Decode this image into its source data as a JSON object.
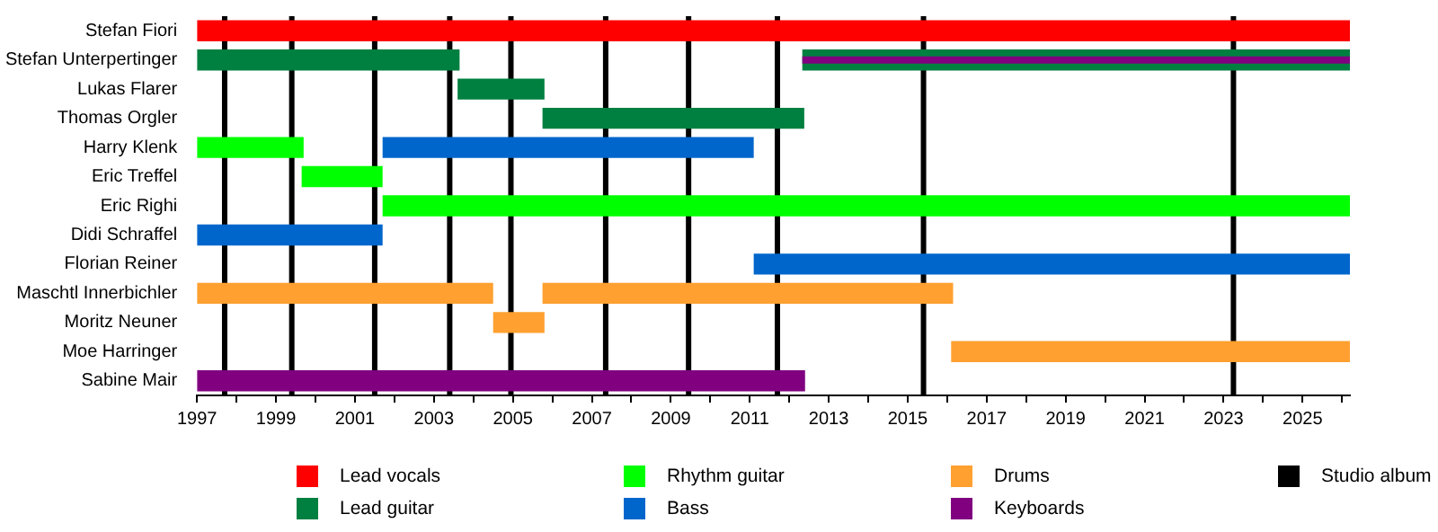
{
  "chart_data": {
    "type": "bar",
    "orientation": "horizontal",
    "categories": [
      "Stefan Fiori",
      "Stefan Unterpertinger",
      "Lukas Flarer",
      "Thomas Orgler",
      "Harry Klenk",
      "Eric Treffel",
      "Eric Righi",
      "Didi Schraffel",
      "Florian Reiner",
      "Maschtl Innerbichler",
      "Moritz Neuner",
      "Moe Harringer",
      "Sabine Mair"
    ],
    "series": [
      {
        "name": "Lead vocals",
        "color": "#ff0000",
        "base": [
          1997,
          null,
          null,
          null,
          null,
          null,
          null,
          null,
          null,
          null,
          null,
          null,
          null
        ],
        "values": [
          29.2,
          null,
          null,
          null,
          null,
          null,
          null,
          null,
          null,
          null,
          null,
          null,
          null
        ]
      },
      {
        "name": "Lead guitar",
        "color": "#008040",
        "base": [
          null,
          1997,
          2003.6,
          2005.75,
          null,
          null,
          null,
          null,
          null,
          null,
          null,
          null,
          null
        ],
        "values": [
          null,
          6.65,
          2.2,
          6.63,
          null,
          null,
          null,
          null,
          null,
          null,
          null,
          null,
          null
        ]
      },
      {
        "color": "#008040",
        "base": [
          null,
          2012.33,
          null,
          null,
          null,
          null,
          null,
          null,
          null,
          null,
          null,
          null,
          null
        ],
        "values": [
          null,
          13.87,
          null,
          null,
          null,
          null,
          null,
          null,
          null,
          null,
          null,
          null,
          null
        ]
      },
      {
        "name": "Rhythm guitar",
        "color": "#00ff00",
        "base": [
          null,
          null,
          null,
          null,
          1997,
          1999.65,
          2001.7,
          null,
          null,
          null,
          null,
          null,
          null
        ],
        "values": [
          null,
          null,
          null,
          null,
          2.7,
          2.05,
          24.5,
          null,
          null,
          null,
          null,
          null,
          null
        ]
      },
      {
        "name": "Bass",
        "color": "#0066cc",
        "base": [
          null,
          null,
          null,
          null,
          2001.7,
          null,
          null,
          1997,
          2011.1,
          null,
          null,
          null,
          null
        ],
        "values": [
          null,
          null,
          null,
          null,
          9.4,
          null,
          null,
          4.7,
          15.1,
          null,
          null,
          null,
          null
        ]
      },
      {
        "name": "Drums",
        "color": "#ffa030",
        "base": [
          null,
          null,
          null,
          null,
          null,
          null,
          null,
          null,
          null,
          1997,
          2004.5,
          2016.1,
          null
        ],
        "values": [
          null,
          null,
          null,
          null,
          null,
          null,
          null,
          null,
          null,
          7.5,
          1.3,
          10.1,
          null
        ]
      },
      {
        "color": "#ffa030",
        "base": [
          null,
          null,
          null,
          null,
          null,
          null,
          null,
          null,
          null,
          2005.75,
          null,
          null,
          null
        ],
        "values": [
          null,
          null,
          null,
          null,
          null,
          null,
          null,
          null,
          null,
          10.4,
          null,
          null,
          null
        ]
      },
      {
        "name": "Keyboards",
        "color": "#800080",
        "base": [
          null,
          2012.33,
          null,
          null,
          null,
          null,
          null,
          null,
          null,
          null,
          null,
          null,
          1997
        ],
        "values": [
          null,
          13.87,
          null,
          null,
          null,
          null,
          null,
          null,
          null,
          null,
          null,
          null,
          15.4
        ]
      }
    ],
    "ref_lines": [
      {
        "axis": "x",
        "value": 1997.7,
        "color": "#000000",
        "label": "Studio album"
      },
      {
        "axis": "x",
        "value": 1999.4,
        "color": "#000000"
      },
      {
        "axis": "x",
        "value": 2001.5,
        "color": "#000000"
      },
      {
        "axis": "x",
        "value": 2003.4,
        "color": "#000000"
      },
      {
        "axis": "x",
        "value": 2004.95,
        "color": "#000000"
      },
      {
        "axis": "x",
        "value": 2007.35,
        "color": "#000000"
      },
      {
        "axis": "x",
        "value": 2009.45,
        "color": "#000000"
      },
      {
        "axis": "x",
        "value": 2011.7,
        "color": "#000000"
      },
      {
        "axis": "x",
        "value": 2015.4,
        "color": "#000000"
      },
      {
        "axis": "x",
        "value": 2023.25,
        "color": "#000000"
      }
    ],
    "xlim": [
      1997,
      2026.2
    ],
    "xticks": [
      1997,
      {
        "value": 1998,
        "label": null
      },
      1999,
      {
        "value": 2000,
        "label": null
      },
      2001,
      {
        "value": 2002,
        "label": null
      },
      2003,
      {
        "value": 2004,
        "label": null
      },
      2005,
      {
        "value": 2006,
        "label": null
      },
      2007,
      {
        "value": 2008,
        "label": null
      },
      2009,
      {
        "value": 2010,
        "label": null
      },
      2011,
      {
        "value": 2012,
        "label": null
      },
      2013,
      {
        "value": 2014,
        "label": null
      },
      2015,
      {
        "value": 2016,
        "label": null
      },
      2017,
      {
        "value": 2018,
        "label": null
      },
      2019,
      {
        "value": 2020,
        "label": null
      },
      2021,
      {
        "value": 2022,
        "label": null
      },
      2023,
      {
        "value": 2024,
        "label": null
      },
      2025,
      {
        "value": 2026,
        "label": null
      }
    ],
    "grid": false,
    "legend": "bottom"
  }
}
